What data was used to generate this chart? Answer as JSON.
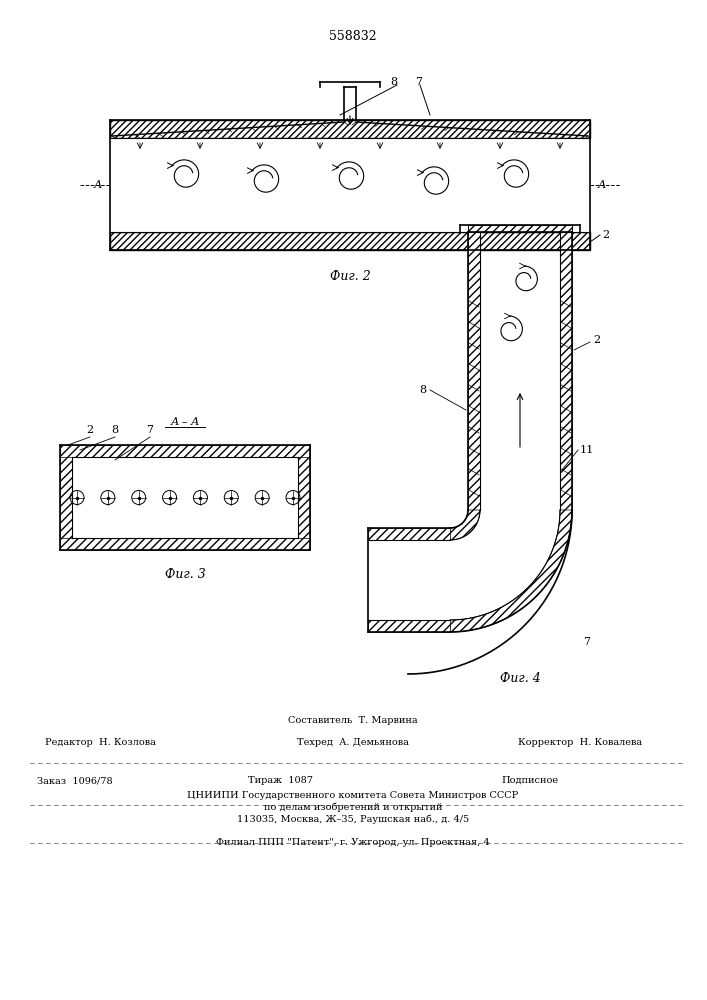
{
  "patent_number": "558832",
  "background_color": "#ffffff",
  "line_color": "#000000",
  "hatch_color": "#000000",
  "fig2_label": "Фиг. 2",
  "fig3_label": "Фиг. 3",
  "fig4_label": "Фиг. 4",
  "section_label": "А – А",
  "footer_line1": "Составитель  Т. Марвина",
  "footer_line2_left": "Редактор  Н. Козлова",
  "footer_line2_mid": "Техред  А. Демьянова",
  "footer_line2_right": "Корректор  Н. Ковалева",
  "footer_line3_left": "Заказ  1096/78",
  "footer_line3_mid": "Тираж  1087",
  "footer_line3_right": "Подписное",
  "footer_line4": "ЦНИИПИ Государственного комитета Совета Министров СССР",
  "footer_line5": "по делам изобретений и открытий",
  "footer_line6": "113035, Москва, Ж–35, Раушская наб., д. 4/5",
  "footer_line7": "Филиал ППП \"Патент\", г. Ужгород, ул. Проектная, 4"
}
